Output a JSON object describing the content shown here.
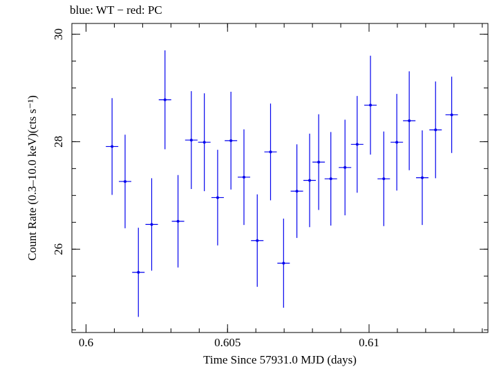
{
  "chart_data": {
    "type": "scatter",
    "title": "blue: WT − red: PC",
    "xlabel": "Time Since 57931.0 MJD (days)",
    "ylabel": "Count Rate (0.3–10.0 keV)(cts s⁻¹)",
    "xlim": [
      0.5995,
      0.6142
    ],
    "ylim": [
      24.45,
      30.2
    ],
    "xticks": [
      {
        "value": 0.6,
        "label": "0.6"
      },
      {
        "value": 0.605,
        "label": "0.605"
      },
      {
        "value": 0.61,
        "label": "0.61"
      }
    ],
    "yticks": [
      {
        "value": 26,
        "label": "26"
      },
      {
        "value": 28,
        "label": "28"
      },
      {
        "value": 30,
        "label": "30"
      }
    ],
    "grid": false,
    "series": [
      {
        "color": "#0000ee",
        "points": [
          {
            "x": 0.60092,
            "xerr": 0.00022,
            "y": 27.91,
            "yerr": 0.9
          },
          {
            "x": 0.60138,
            "xerr": 0.00022,
            "y": 27.26,
            "yerr": 0.87
          },
          {
            "x": 0.60185,
            "xerr": 0.00022,
            "y": 25.57,
            "yerr": 0.83
          },
          {
            "x": 0.60232,
            "xerr": 0.00022,
            "y": 26.46,
            "yerr": 0.86
          },
          {
            "x": 0.60279,
            "xerr": 0.00022,
            "y": 28.78,
            "yerr": 0.92
          },
          {
            "x": 0.60325,
            "xerr": 0.00022,
            "y": 26.52,
            "yerr": 0.86
          },
          {
            "x": 0.60372,
            "xerr": 0.00022,
            "y": 28.03,
            "yerr": 0.91
          },
          {
            "x": 0.60418,
            "xerr": 0.00022,
            "y": 27.99,
            "yerr": 0.91
          },
          {
            "x": 0.60465,
            "xerr": 0.00022,
            "y": 26.96,
            "yerr": 0.89
          },
          {
            "x": 0.60512,
            "xerr": 0.00022,
            "y": 28.02,
            "yerr": 0.91
          },
          {
            "x": 0.60558,
            "xerr": 0.00022,
            "y": 27.34,
            "yerr": 0.89
          },
          {
            "x": 0.60605,
            "xerr": 0.00022,
            "y": 26.16,
            "yerr": 0.86
          },
          {
            "x": 0.60652,
            "xerr": 0.00022,
            "y": 27.81,
            "yerr": 0.9
          },
          {
            "x": 0.60698,
            "xerr": 0.00022,
            "y": 25.74,
            "yerr": 0.83
          },
          {
            "x": 0.60745,
            "xerr": 0.00022,
            "y": 27.08,
            "yerr": 0.87
          },
          {
            "x": 0.6079,
            "xerr": 0.00022,
            "y": 27.28,
            "yerr": 0.87
          },
          {
            "x": 0.60822,
            "xerr": 0.00022,
            "y": 27.62,
            "yerr": 0.89
          },
          {
            "x": 0.60865,
            "xerr": 0.00022,
            "y": 27.31,
            "yerr": 0.87
          },
          {
            "x": 0.60915,
            "xerr": 0.00022,
            "y": 27.52,
            "yerr": 0.89
          },
          {
            "x": 0.60958,
            "xerr": 0.00022,
            "y": 27.95,
            "yerr": 0.9
          },
          {
            "x": 0.61005,
            "xerr": 0.00022,
            "y": 28.68,
            "yerr": 0.92
          },
          {
            "x": 0.61052,
            "xerr": 0.00022,
            "y": 27.31,
            "yerr": 0.88
          },
          {
            "x": 0.61098,
            "xerr": 0.00022,
            "y": 27.99,
            "yerr": 0.9
          },
          {
            "x": 0.61142,
            "xerr": 0.00022,
            "y": 28.39,
            "yerr": 0.92
          },
          {
            "x": 0.61188,
            "xerr": 0.00022,
            "y": 27.33,
            "yerr": 0.88
          },
          {
            "x": 0.61235,
            "xerr": 0.00022,
            "y": 28.22,
            "yerr": 0.9
          },
          {
            "x": 0.61292,
            "xerr": 0.00022,
            "y": 28.5,
            "yerr": 0.71
          }
        ]
      }
    ]
  }
}
